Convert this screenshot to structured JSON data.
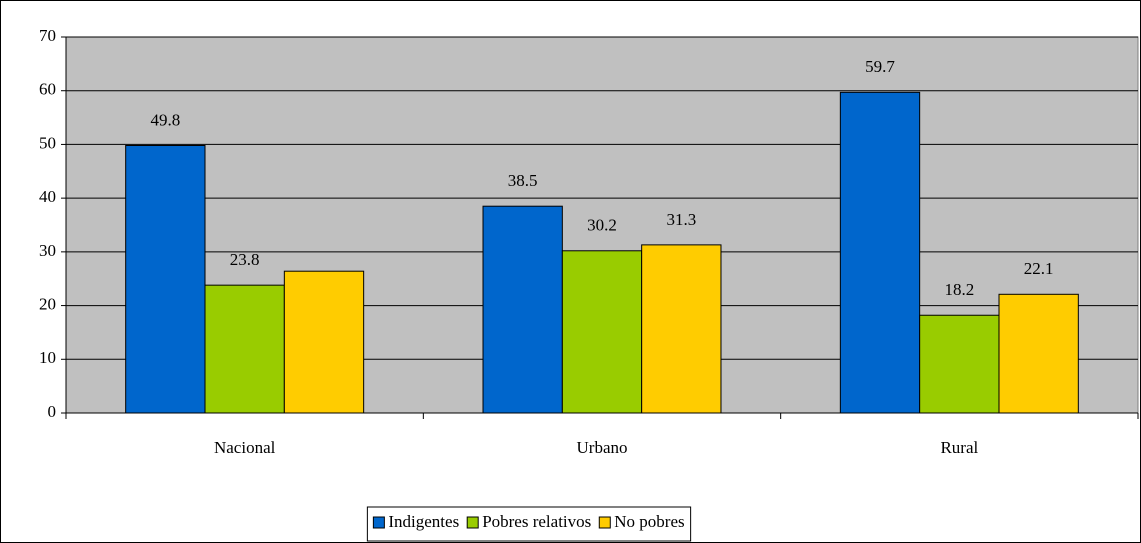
{
  "chart_data": {
    "type": "bar",
    "categories": [
      "Nacional",
      "Urbano",
      "Rural"
    ],
    "series": [
      {
        "name": "Indigentes",
        "color": "#0066cc",
        "values": [
          49.8,
          38.5,
          59.7
        ],
        "value_labels": [
          "49.8",
          "38.5",
          "59.7"
        ]
      },
      {
        "name": "Pobres relativos",
        "color": "#99cc00",
        "values": [
          23.8,
          30.2,
          18.2
        ],
        "value_labels": [
          "23.8",
          "30.2",
          "18.2"
        ]
      },
      {
        "name": "No pobres",
        "color": "#ffcc00",
        "values": [
          26.4,
          31.3,
          22.1
        ],
        "value_labels": [
          null,
          "31.3",
          "22.1"
        ]
      }
    ],
    "ylim": [
      0,
      70
    ],
    "yticks": [
      0,
      10,
      20,
      30,
      40,
      50,
      60,
      70
    ],
    "grid": true,
    "plot_background": "#c0c0c0",
    "legend": "bottom"
  }
}
